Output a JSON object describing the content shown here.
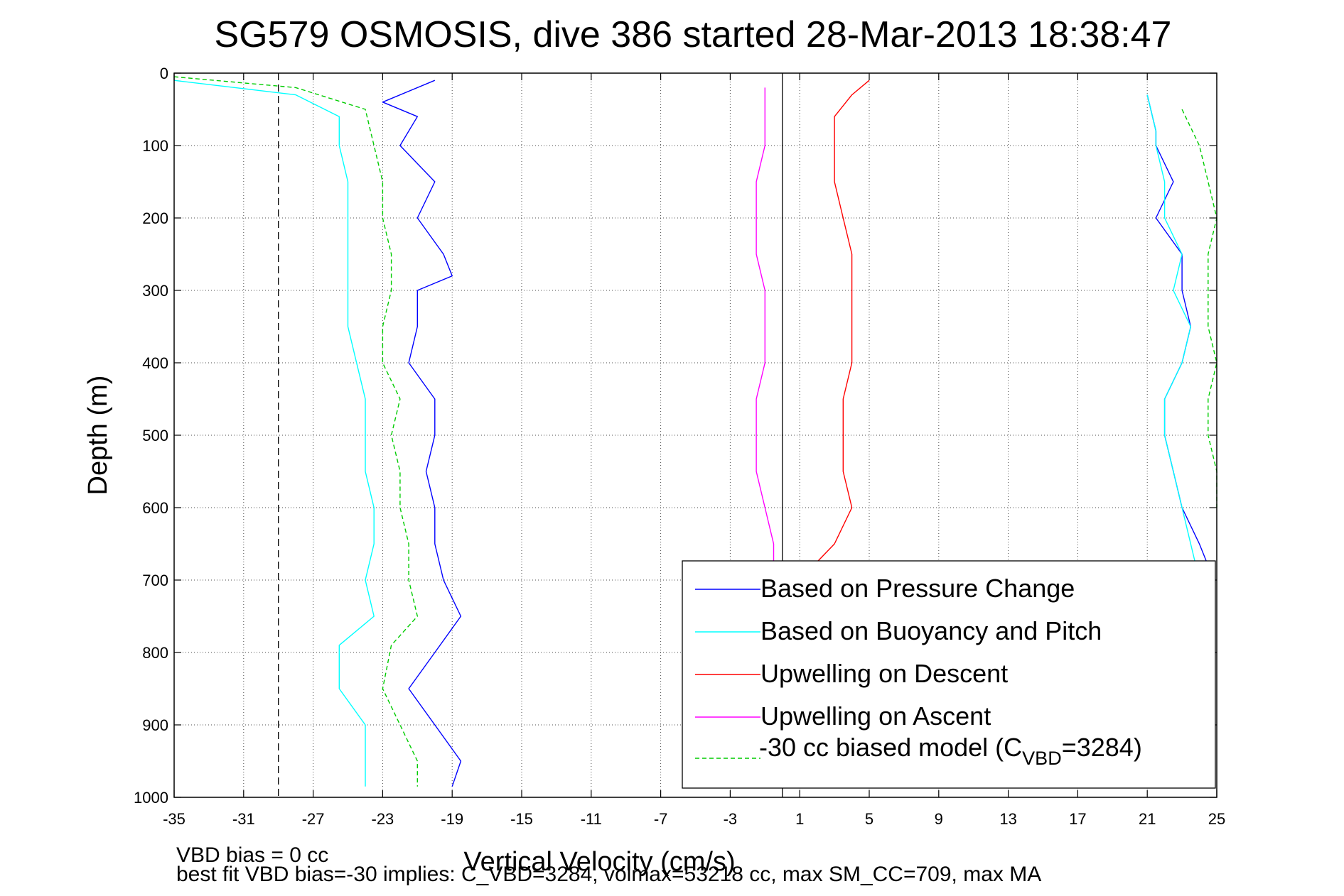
{
  "chart_data": {
    "type": "line",
    "title": "SG579 OSMOSIS, dive 386 started 28-Mar-2013 18:38:47",
    "xlabel": "Vertical Velocity (cm/s)",
    "ylabel": "Depth (m)",
    "xlim": [
      -35,
      25
    ],
    "ylim": [
      0,
      1000
    ],
    "y_reversed": true,
    "grid": true,
    "x_ticks": [
      -35,
      -31,
      -27,
      -23,
      -19,
      -15,
      -11,
      -7,
      -3,
      1,
      5,
      9,
      13,
      17,
      21,
      25
    ],
    "y_ticks": [
      0,
      100,
      200,
      300,
      400,
      500,
      600,
      700,
      800,
      900,
      1000
    ],
    "reference_lines": [
      {
        "x": -29,
        "style": "dashed",
        "color": "#000000"
      },
      {
        "x": 0,
        "style": "solid",
        "color": "#000000"
      }
    ],
    "legend_position": "bottom-right",
    "series": [
      {
        "name": "Based on Pressure Change",
        "color": "#0000ff",
        "style": "solid",
        "points": [
          [
            -20,
            10
          ],
          [
            -23,
            40
          ],
          [
            -21,
            60
          ],
          [
            -22,
            100
          ],
          [
            -20,
            150
          ],
          [
            -21,
            200
          ],
          [
            -19.5,
            250
          ],
          [
            -19,
            280
          ],
          [
            -21,
            300
          ],
          [
            -21,
            350
          ],
          [
            -21.5,
            400
          ],
          [
            -20,
            450
          ],
          [
            -20,
            500
          ],
          [
            -20.5,
            550
          ],
          [
            -20,
            600
          ],
          [
            -20,
            650
          ],
          [
            -19.5,
            700
          ],
          [
            -18.5,
            750
          ],
          [
            -20,
            800
          ],
          [
            -21.5,
            850
          ],
          [
            -20,
            900
          ],
          [
            -18.5,
            950
          ],
          [
            -19,
            985
          ]
        ]
      },
      {
        "name": "",
        "color": "#0000ff",
        "style": "solid",
        "points": [
          [
            21,
            30
          ],
          [
            21.5,
            80
          ],
          [
            21.5,
            100
          ],
          [
            22.5,
            150
          ],
          [
            21.5,
            200
          ],
          [
            23,
            250
          ],
          [
            23,
            300
          ],
          [
            23.5,
            350
          ],
          [
            23,
            400
          ],
          [
            22,
            450
          ],
          [
            22,
            500
          ],
          [
            22.5,
            550
          ],
          [
            23,
            600
          ],
          [
            24,
            650
          ],
          [
            24.5,
            680
          ]
        ]
      },
      {
        "name": "Based on Buoyancy and Pitch",
        "color": "#00ffff",
        "style": "solid",
        "points": [
          [
            -35,
            10
          ],
          [
            -28,
            30
          ],
          [
            -25.5,
            60
          ],
          [
            -25.5,
            100
          ],
          [
            -25,
            150
          ],
          [
            -25,
            200
          ],
          [
            -25,
            250
          ],
          [
            -25,
            300
          ],
          [
            -25,
            350
          ],
          [
            -24.5,
            400
          ],
          [
            -24,
            450
          ],
          [
            -24,
            500
          ],
          [
            -24,
            550
          ],
          [
            -23.5,
            600
          ],
          [
            -23.5,
            650
          ],
          [
            -24,
            700
          ],
          [
            -23.5,
            750
          ],
          [
            -25.5,
            790
          ],
          [
            -25.5,
            850
          ],
          [
            -24,
            900
          ],
          [
            -24,
            950
          ],
          [
            -24,
            985
          ]
        ]
      },
      {
        "name": "",
        "color": "#00ffff",
        "style": "solid",
        "points": [
          [
            21,
            30
          ],
          [
            21.5,
            80
          ],
          [
            21.5,
            100
          ],
          [
            22,
            150
          ],
          [
            22,
            200
          ],
          [
            23,
            250
          ],
          [
            22.5,
            300
          ],
          [
            23.5,
            350
          ],
          [
            23,
            400
          ],
          [
            22,
            450
          ],
          [
            22,
            500
          ],
          [
            22.5,
            550
          ],
          [
            23,
            600
          ],
          [
            23.5,
            650
          ],
          [
            24,
            700
          ]
        ]
      },
      {
        "name": "Upwelling on Descent",
        "color": "#ff0000",
        "style": "solid",
        "points": [
          [
            5,
            10
          ],
          [
            4,
            30
          ],
          [
            3,
            60
          ],
          [
            3,
            100
          ],
          [
            3,
            150
          ],
          [
            3.5,
            200
          ],
          [
            4,
            250
          ],
          [
            4,
            300
          ],
          [
            4,
            350
          ],
          [
            4,
            400
          ],
          [
            3.5,
            450
          ],
          [
            3.5,
            500
          ],
          [
            3.5,
            550
          ],
          [
            4,
            600
          ],
          [
            3,
            650
          ],
          [
            1,
            700
          ]
        ]
      },
      {
        "name": "Upwelling on Ascent",
        "color": "#ff00ff",
        "style": "solid",
        "points": [
          [
            -1,
            20
          ],
          [
            -1,
            60
          ],
          [
            -1,
            100
          ],
          [
            -1.5,
            150
          ],
          [
            -1.5,
            200
          ],
          [
            -1.5,
            250
          ],
          [
            -1,
            300
          ],
          [
            -1,
            350
          ],
          [
            -1,
            400
          ],
          [
            -1.5,
            450
          ],
          [
            -1.5,
            500
          ],
          [
            -1.5,
            550
          ],
          [
            -1,
            600
          ],
          [
            -0.5,
            650
          ],
          [
            -0.5,
            700
          ]
        ]
      },
      {
        "name": "-30 cc biased model (C_VBD=3284)",
        "color": "#00cc00",
        "style": "dashed",
        "points": [
          [
            -35,
            5
          ],
          [
            -28,
            20
          ],
          [
            -24,
            50
          ],
          [
            -23.5,
            100
          ],
          [
            -23,
            150
          ],
          [
            -23,
            200
          ],
          [
            -22.5,
            250
          ],
          [
            -22.5,
            300
          ],
          [
            -23,
            350
          ],
          [
            -23,
            400
          ],
          [
            -22,
            450
          ],
          [
            -22.5,
            500
          ],
          [
            -22,
            550
          ],
          [
            -22,
            600
          ],
          [
            -21.5,
            650
          ],
          [
            -21.5,
            700
          ],
          [
            -21,
            750
          ],
          [
            -22.5,
            790
          ],
          [
            -23,
            850
          ],
          [
            -22,
            900
          ],
          [
            -21,
            950
          ],
          [
            -21,
            985
          ]
        ]
      },
      {
        "name": "",
        "color": "#00cc00",
        "style": "dashed",
        "points": [
          [
            23,
            50
          ],
          [
            24,
            100
          ],
          [
            24.5,
            150
          ],
          [
            25,
            200
          ],
          [
            24.5,
            250
          ],
          [
            24.5,
            300
          ],
          [
            24.5,
            350
          ],
          [
            25,
            400
          ],
          [
            24.5,
            450
          ],
          [
            24.5,
            500
          ],
          [
            25,
            550
          ],
          [
            25,
            600
          ]
        ]
      }
    ]
  },
  "legend": {
    "items": [
      {
        "label": "Based on Pressure Change",
        "color": "#0000ff",
        "style": "solid"
      },
      {
        "label": "Based on Buoyancy and Pitch",
        "color": "#00ffff",
        "style": "solid"
      },
      {
        "label": "Upwelling on Descent",
        "color": "#ff0000",
        "style": "solid"
      },
      {
        "label": "Upwelling on Ascent",
        "color": "#ff00ff",
        "style": "solid"
      }
    ],
    "model_item": {
      "prefix": "-30 cc biased model (C",
      "subscript": "VBD",
      "suffix": "=3284)",
      "color": "#00cc00",
      "style": "dashed"
    }
  },
  "footer": {
    "line1": "VBD bias = 0 cc",
    "line2": "best fit VBD bias=-30 implies: C_VBD=3284, volmax=53218 cc, max SM_CC=709, max MA"
  }
}
